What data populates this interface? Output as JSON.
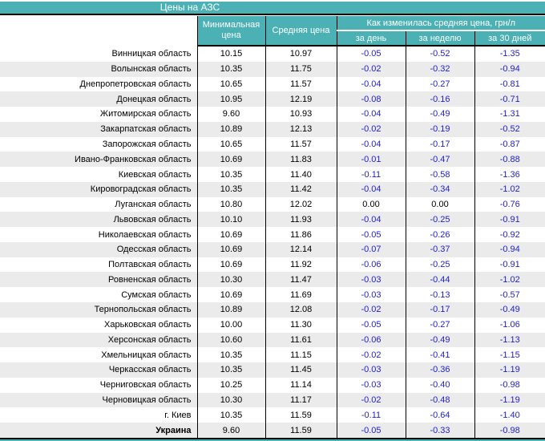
{
  "title": "Цены на АЗС",
  "table": {
    "headers": {
      "min_price": "Минимальная цена",
      "avg_price": "Средняя цена",
      "change_group": "Как изменилась средняя цена, грн/л",
      "change_day": "за день",
      "change_week": "за неделю",
      "change_month": "за 30 дней"
    },
    "rows": [
      {
        "region": "Винницкая область",
        "min": "10.15",
        "avg": "10.97",
        "day": "-0.05",
        "week": "-0.52",
        "month": "-1.35"
      },
      {
        "region": "Волынская область",
        "min": "10.35",
        "avg": "11.75",
        "day": "-0.02",
        "week": "-0.32",
        "month": "-0.94"
      },
      {
        "region": "Днепропетровская область",
        "min": "10.65",
        "avg": "11.57",
        "day": "-0.04",
        "week": "-0.27",
        "month": "-0.81"
      },
      {
        "region": "Донецкая область",
        "min": "10.95",
        "avg": "12.19",
        "day": "-0.08",
        "week": "-0.16",
        "month": "-0.71"
      },
      {
        "region": "Житомирская область",
        "min": "9.60",
        "avg": "10.93",
        "day": "-0.04",
        "week": "-0.49",
        "month": "-1.31"
      },
      {
        "region": "Закарпатская область",
        "min": "10.89",
        "avg": "12.13",
        "day": "-0.02",
        "week": "-0.19",
        "month": "-0.52"
      },
      {
        "region": "Запорожская область",
        "min": "10.65",
        "avg": "11.57",
        "day": "-0.04",
        "week": "-0.17",
        "month": "-0.87"
      },
      {
        "region": "Ивано-Франковская область",
        "min": "10.69",
        "avg": "11.83",
        "day": "-0.01",
        "week": "-0.47",
        "month": "-0.88"
      },
      {
        "region": "Киевская область",
        "min": "10.35",
        "avg": "11.40",
        "day": "-0.11",
        "week": "-0.58",
        "month": "-1.36"
      },
      {
        "region": "Кировоградская область",
        "min": "10.35",
        "avg": "11.42",
        "day": "-0.04",
        "week": "-0.34",
        "month": "-1.02"
      },
      {
        "region": "Луганская область",
        "min": "10.80",
        "avg": "12.02",
        "day": "0.00",
        "week": "0.00",
        "month": "-0.76"
      },
      {
        "region": "Львовская область",
        "min": "10.10",
        "avg": "11.93",
        "day": "-0.04",
        "week": "-0.25",
        "month": "-0.91"
      },
      {
        "region": "Николаевская область",
        "min": "10.69",
        "avg": "11.86",
        "day": "-0.05",
        "week": "-0.26",
        "month": "-0.92"
      },
      {
        "region": "Одесская область",
        "min": "10.69",
        "avg": "12.14",
        "day": "-0.07",
        "week": "-0.37",
        "month": "-0.94"
      },
      {
        "region": "Полтавская область",
        "min": "10.69",
        "avg": "11.92",
        "day": "-0.06",
        "week": "-0.25",
        "month": "-0.91"
      },
      {
        "region": "Ровненская область",
        "min": "10.30",
        "avg": "11.47",
        "day": "-0.03",
        "week": "-0.44",
        "month": "-1.02"
      },
      {
        "region": "Сумская область",
        "min": "10.69",
        "avg": "11.69",
        "day": "-0.03",
        "week": "-0.13",
        "month": "-0.57"
      },
      {
        "region": "Тернопольская область",
        "min": "10.89",
        "avg": "12.08",
        "day": "-0.02",
        "week": "-0.17",
        "month": "-0.49"
      },
      {
        "region": "Харьковская область",
        "min": "10.00",
        "avg": "11.30",
        "day": "-0.05",
        "week": "-0.27",
        "month": "-1.06"
      },
      {
        "region": "Херсонская область",
        "min": "10.60",
        "avg": "11.61",
        "day": "-0.06",
        "week": "-0.49",
        "month": "-1.13"
      },
      {
        "region": "Хмельницкая область",
        "min": "10.35",
        "avg": "11.15",
        "day": "-0.02",
        "week": "-0.41",
        "month": "-1.15"
      },
      {
        "region": "Черкасская область",
        "min": "10.35",
        "avg": "11.45",
        "day": "-0.03",
        "week": "-0.36",
        "month": "-1.19"
      },
      {
        "region": "Черниговская область",
        "min": "10.25",
        "avg": "11.14",
        "day": "-0.03",
        "week": "-0.40",
        "month": "-0.98"
      },
      {
        "region": "Черновицкая область",
        "min": "10.30",
        "avg": "11.17",
        "day": "-0.02",
        "week": "-0.48",
        "month": "-1.19"
      },
      {
        "region": "г. Киев",
        "min": "10.35",
        "avg": "11.59",
        "day": "-0.11",
        "week": "-0.64",
        "month": "-1.40"
      },
      {
        "region": "Украина",
        "min": "9.60",
        "avg": "11.59",
        "day": "-0.05",
        "week": "-0.33",
        "month": "-0.98",
        "is_total": true
      }
    ]
  },
  "colors": {
    "header_teal": "#4BB1B5",
    "header_text": "#FFFFFF",
    "row_alt_gray": "#EBEBEB",
    "negative_value_blue": "#2222CC",
    "text_black": "#000000"
  }
}
